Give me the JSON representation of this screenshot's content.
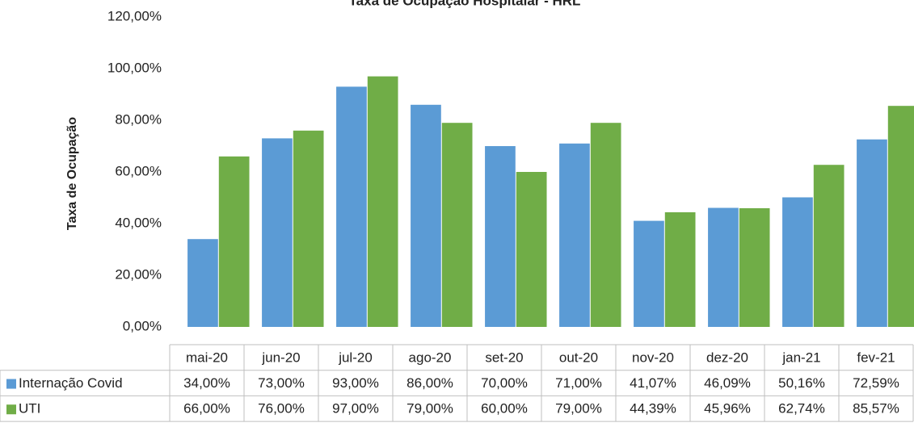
{
  "chart_data": {
    "type": "bar",
    "title": "Taxa de Ocupação Hospitalar - HRL",
    "y_label": "Taxa de Ocupação",
    "categories": [
      "mai-20",
      "jun-20",
      "jul-20",
      "ago-20",
      "set-20",
      "out-20",
      "nov-20",
      "dez-20",
      "jan-21",
      "fev-21"
    ],
    "series": [
      {
        "name": "Internação Covid",
        "color": "#5b9bd5",
        "values": [
          34,
          73,
          93,
          86,
          70,
          71,
          41.07,
          46.09,
          50.16,
          72.59
        ],
        "value_labels": [
          "34,00%",
          "73,00%",
          "93,00%",
          "86,00%",
          "70,00%",
          "71,00%",
          "41,07%",
          "46,09%",
          "50,16%",
          "72,59%"
        ]
      },
      {
        "name": "UTI",
        "color": "#70ad47",
        "values": [
          66,
          76,
          97,
          79,
          60,
          79,
          44.39,
          45.96,
          62.74,
          85.57
        ],
        "value_labels": [
          "66,00%",
          "76,00%",
          "97,00%",
          "79,00%",
          "60,00%",
          "79,00%",
          "44,39%",
          "45,96%",
          "62,74%",
          "85,57%"
        ]
      }
    ],
    "ylim": [
      0,
      120
    ],
    "yticks": [
      {
        "value": 0,
        "label": "0,00%"
      },
      {
        "value": 20,
        "label": "20,00%"
      },
      {
        "value": 40,
        "label": "40,00%"
      },
      {
        "value": 60,
        "label": "60,00%"
      },
      {
        "value": 80,
        "label": "80,00%"
      },
      {
        "value": 100,
        "label": "100,00%"
      },
      {
        "value": 120,
        "label": "120,00%"
      }
    ],
    "grid": false
  }
}
